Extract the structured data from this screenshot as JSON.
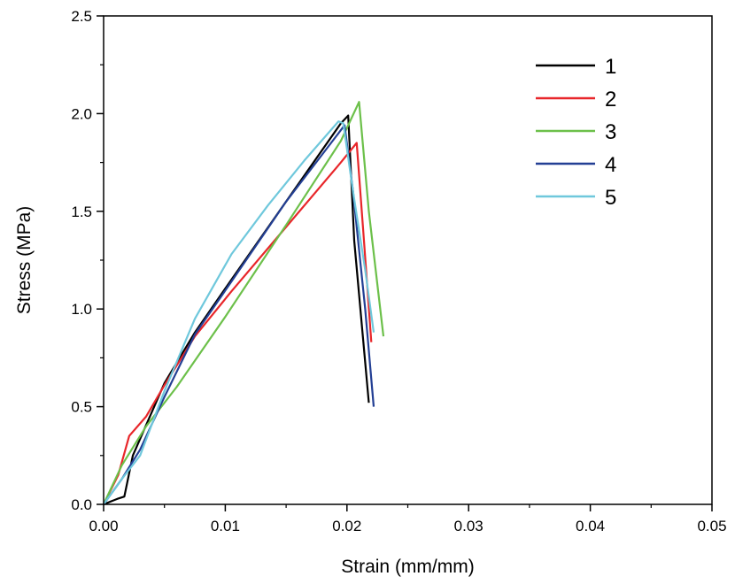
{
  "chart_data": {
    "type": "line",
    "xlabel": "Strain (mm/mm)",
    "ylabel": "Stress (MPa)",
    "xlim": [
      0.0,
      0.05
    ],
    "ylim": [
      0.0,
      2.5
    ],
    "x_ticks": [
      "0.00",
      "0.01",
      "0.02",
      "0.03",
      "0.04",
      "0.05"
    ],
    "y_ticks": [
      "0.0",
      "0.5",
      "1.0",
      "1.5",
      "2.0",
      "2.5"
    ],
    "x_tick_values": [
      0.0,
      0.01,
      0.02,
      0.03,
      0.04,
      0.05
    ],
    "y_tick_values": [
      0.0,
      0.5,
      1.0,
      1.5,
      2.0,
      2.5
    ],
    "grid": false,
    "legend_position": "top-right",
    "series": [
      {
        "name": "1",
        "color": "#000000",
        "x": [
          0.0,
          0.0012,
          0.0017,
          0.0024,
          0.005,
          0.0075,
          0.0105,
          0.015,
          0.0195,
          0.0201,
          0.0206,
          0.0218
        ],
        "y": [
          0.0,
          0.03,
          0.04,
          0.25,
          0.62,
          0.88,
          1.15,
          1.55,
          1.95,
          1.99,
          1.35,
          0.52
        ]
      },
      {
        "name": "2",
        "color": "#e8262a",
        "x": [
          0.0,
          0.0012,
          0.0021,
          0.0035,
          0.005,
          0.0075,
          0.0105,
          0.015,
          0.0195,
          0.0208,
          0.0214,
          0.022
        ],
        "y": [
          0.0,
          0.15,
          0.35,
          0.45,
          0.61,
          0.86,
          1.09,
          1.42,
          1.75,
          1.85,
          1.35,
          0.83
        ]
      },
      {
        "name": "3",
        "color": "#6cc04a",
        "x": [
          0.0,
          0.0015,
          0.0035,
          0.006,
          0.01,
          0.015,
          0.0195,
          0.021,
          0.0218,
          0.023
        ],
        "y": [
          0.0,
          0.2,
          0.4,
          0.6,
          0.96,
          1.43,
          1.86,
          2.06,
          1.5,
          0.86
        ]
      },
      {
        "name": "4",
        "color": "#233f94",
        "x": [
          0.0,
          0.0015,
          0.003,
          0.005,
          0.0075,
          0.0105,
          0.015,
          0.0198,
          0.0205,
          0.0215,
          0.0222
        ],
        "y": [
          0.0,
          0.13,
          0.28,
          0.55,
          0.87,
          1.14,
          1.55,
          1.94,
          1.6,
          1.0,
          0.5
        ]
      },
      {
        "name": "5",
        "color": "#6fc8dc",
        "x": [
          0.0,
          0.0015,
          0.003,
          0.005,
          0.0075,
          0.0105,
          0.0135,
          0.0165,
          0.0193,
          0.0197,
          0.0205,
          0.0215,
          0.0222
        ],
        "y": [
          0.0,
          0.13,
          0.25,
          0.58,
          0.95,
          1.28,
          1.53,
          1.76,
          1.96,
          1.95,
          1.6,
          1.2,
          0.88
        ]
      }
    ]
  }
}
